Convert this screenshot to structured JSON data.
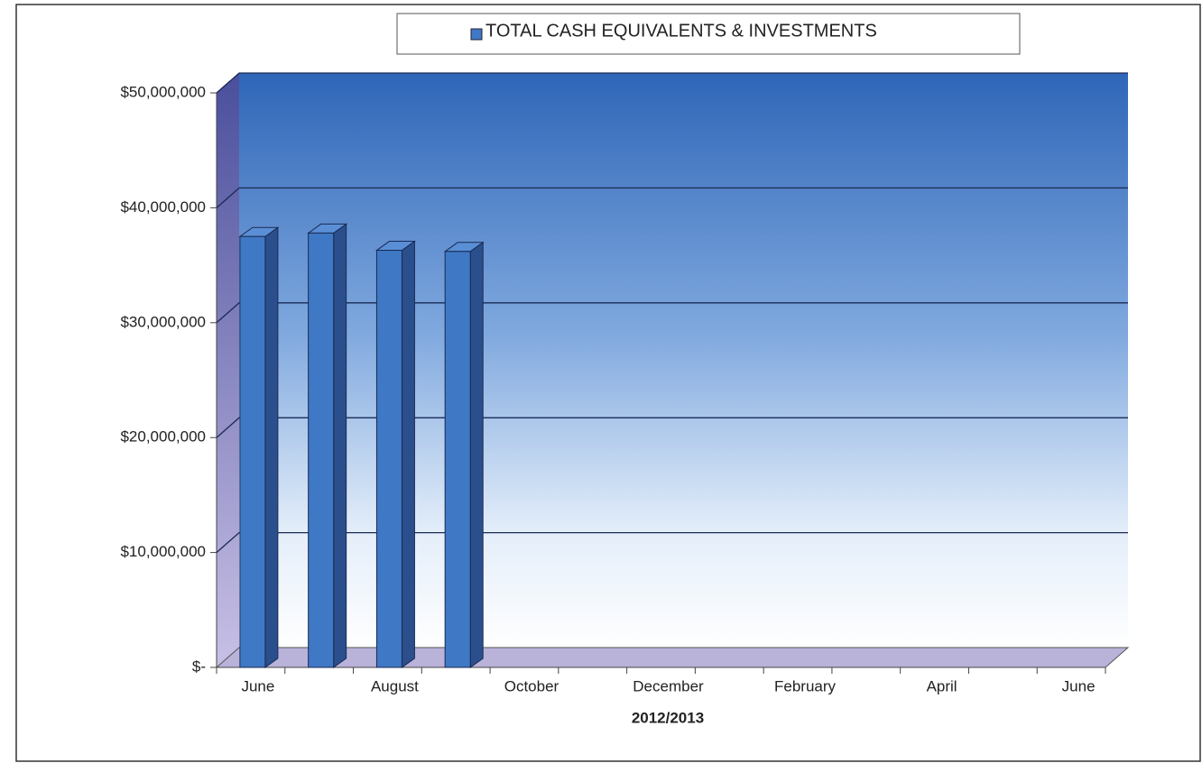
{
  "chart_data": {
    "type": "bar",
    "x_label": "2012/2013",
    "categories": [
      "June",
      null,
      "August",
      null,
      "October",
      null,
      "December",
      null,
      "February",
      null,
      "April",
      null,
      "June"
    ],
    "series": [
      {
        "name": "TOTAL CASH EQUIVALENTS & INVESTMENTS",
        "color": "#3f78c4",
        "values": [
          37500000,
          37800000,
          36300000,
          36200000,
          null,
          null,
          null,
          null,
          null,
          null,
          null,
          null,
          null
        ]
      }
    ],
    "ylim": [
      0,
      50000000
    ],
    "yticks": [
      {
        "value": 0,
        "label": "$-"
      },
      {
        "value": 10000000,
        "label": "$10,000,000"
      },
      {
        "value": 20000000,
        "label": "$20,000,000"
      },
      {
        "value": 30000000,
        "label": "$30,000,000"
      },
      {
        "value": 40000000,
        "label": "$40,000,000"
      },
      {
        "value": 50000000,
        "label": "$50,000,000"
      }
    ],
    "grid": true,
    "legend": "top"
  }
}
